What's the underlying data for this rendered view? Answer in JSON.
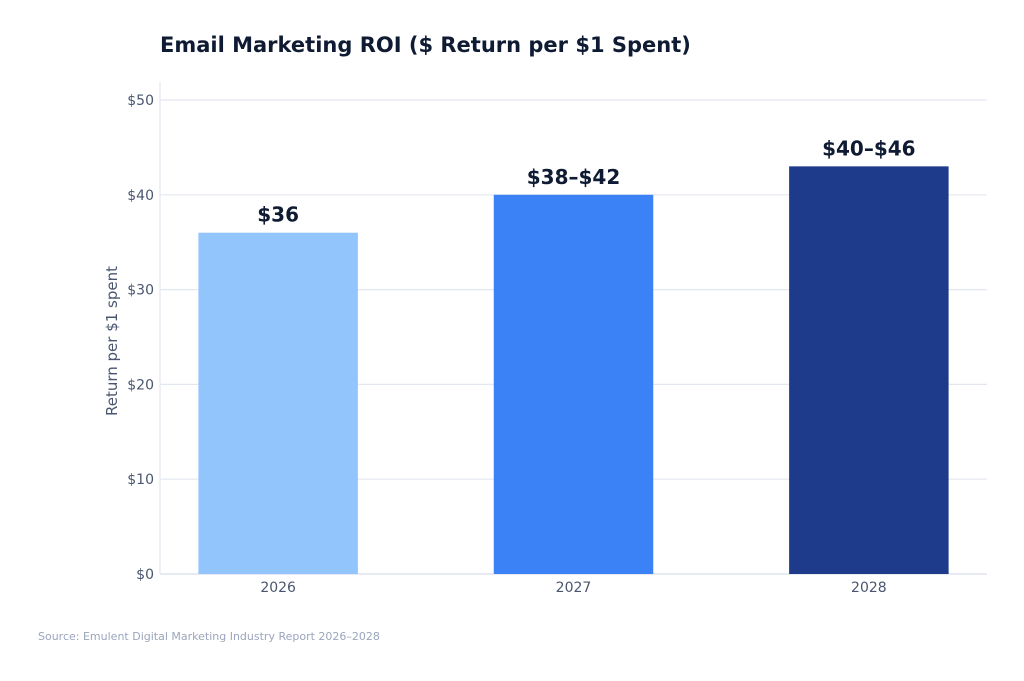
{
  "chart_data": {
    "type": "bar",
    "title": "Email Marketing ROI ($ Return per $1 Spent)",
    "xlabel": "",
    "ylabel": "Return per $1 spent",
    "ylim": [
      0,
      50
    ],
    "yticks": [
      0,
      10,
      20,
      30,
      40,
      50
    ],
    "ytick_labels": [
      "$0",
      "$10",
      "$20",
      "$30",
      "$40",
      "$50"
    ],
    "grid": true,
    "categories": [
      "2026",
      "2027",
      "2028"
    ],
    "values": [
      36,
      40,
      43
    ],
    "data_labels": [
      "$36",
      "$38–$42",
      "$40–$46"
    ],
    "colors": [
      "#93c5fd",
      "#3b82f6",
      "#1e3a8a"
    ],
    "source": "Source: Emulent Digital Marketing Industry Report 2026–2028"
  }
}
